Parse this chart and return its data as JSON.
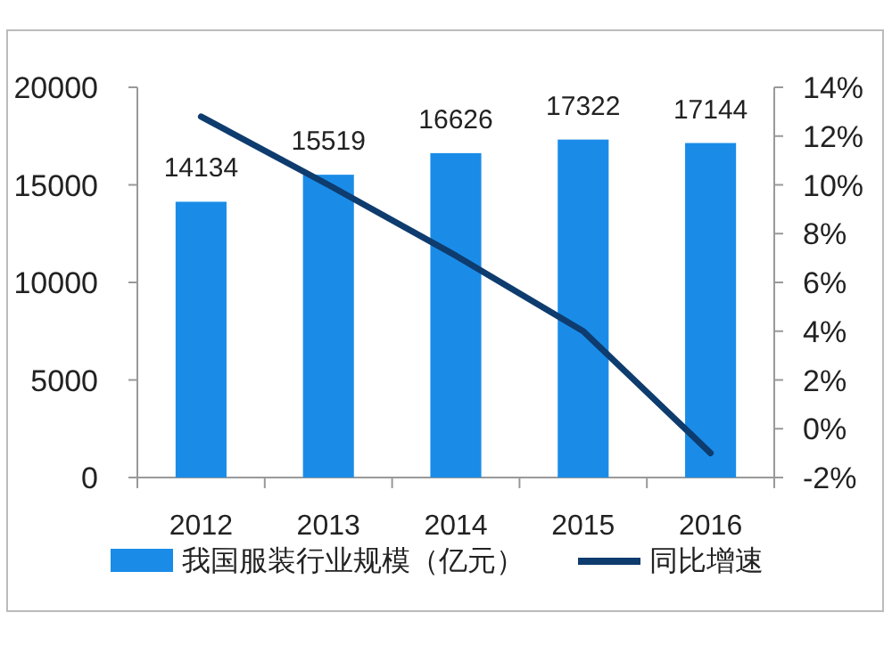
{
  "chart_data": {
    "type": "bar",
    "categories": [
      "2012",
      "2013",
      "2014",
      "2015",
      "2016"
    ],
    "series": [
      {
        "name": "我国服装行业规模（亿元）",
        "color": "#1a8ce8",
        "values": [
          14134,
          15519,
          16626,
          17322,
          17144
        ],
        "value_labels": [
          "14134",
          "15519",
          "16626",
          "17322",
          "17144"
        ]
      },
      {
        "name": "同比增速",
        "type": "line",
        "axis": "y2",
        "color": "#0e3c6e",
        "values": [
          12.8,
          10.0,
          7.1,
          4.0,
          -1.0
        ]
      }
    ],
    "ylim": [
      0,
      20000
    ],
    "yticks": [
      0,
      5000,
      10000,
      15000,
      20000
    ],
    "y2lim": [
      -2,
      14
    ],
    "y2ticks": [
      {
        "value": -2,
        "label": "-2%"
      },
      {
        "value": 0,
        "label": "0%"
      },
      {
        "value": 2,
        "label": "2%"
      },
      {
        "value": 4,
        "label": "4%"
      },
      {
        "value": 6,
        "label": "6%"
      },
      {
        "value": 8,
        "label": "8%"
      },
      {
        "value": 10,
        "label": "10%"
      },
      {
        "value": 12,
        "label": "12%"
      },
      {
        "value": 14,
        "label": "14%"
      }
    ],
    "grid": false,
    "legend": "bottom",
    "marker": "none",
    "line_style": "solid"
  }
}
